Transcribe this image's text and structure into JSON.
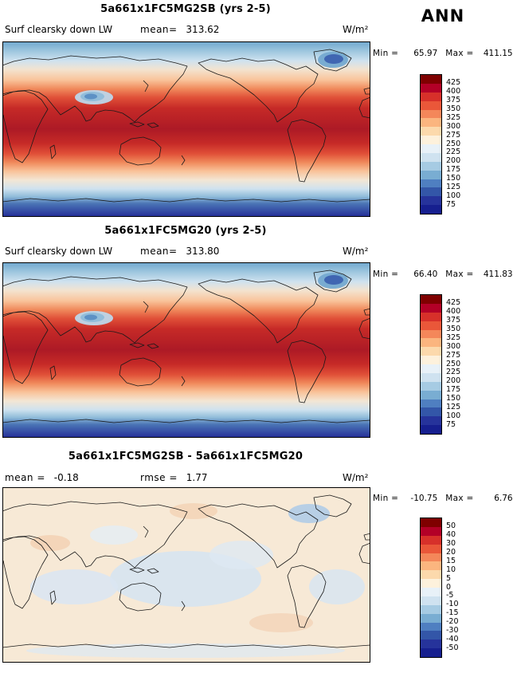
{
  "page": {
    "season_label": "ANN",
    "units": "W/m²"
  },
  "panels": [
    {
      "title": "5a661x1FC5MG2SB (yrs 2-5)",
      "var_label": "Surf clearsky down LW",
      "mean_label": "mean=",
      "mean": "313.62",
      "units": "W/m²",
      "min_label": "Min =",
      "min": "65.97",
      "max_label": "Max =",
      "max": "411.15"
    },
    {
      "title": "5a661x1FC5MG20 (yrs 2-5)",
      "var_label": "Surf clearsky down LW",
      "mean_label": "mean=",
      "mean": "313.80",
      "units": "W/m²",
      "min_label": "Min =",
      "min": "66.40",
      "max_label": "Max =",
      "max": "411.83"
    },
    {
      "title": "5a661x1FC5MG2SB - 5a661x1FC5MG20",
      "mean_label": "mean =",
      "mean": "-0.18",
      "rmse_label": "rmse =",
      "rmse": "1.77",
      "units": "W/m²",
      "min_label": "Min =",
      "min": "-10.75",
      "max_label": "Max =",
      "max": "6.76"
    }
  ],
  "colorbars": {
    "main": {
      "labels": [
        "425",
        "400",
        "375",
        "350",
        "325",
        "300",
        "275",
        "250",
        "225",
        "200",
        "175",
        "150",
        "125",
        "100",
        "75"
      ],
      "colors": [
        "#7f0000",
        "#b30027",
        "#d7302a",
        "#ea5739",
        "#f4875a",
        "#fbb57f",
        "#fcd9ac",
        "#fdf1dc",
        "#e8f1f8",
        "#cfe2f0",
        "#a6cbe3",
        "#79add2",
        "#4f7fc1",
        "#3356a8",
        "#26339b",
        "#161f8f"
      ]
    },
    "diff": {
      "labels": [
        "50",
        "40",
        "30",
        "20",
        "15",
        "10",
        "5",
        "0",
        "-5",
        "-10",
        "-15",
        "-20",
        "-30",
        "-40",
        "-50"
      ],
      "colors": [
        "#7f0000",
        "#b30027",
        "#d7302a",
        "#ea5739",
        "#f4875a",
        "#fbb57f",
        "#fcd9ac",
        "#fdf1dc",
        "#e8f1f8",
        "#cfe2f0",
        "#a6cbe3",
        "#79add2",
        "#4f7fc1",
        "#3356a8",
        "#26339b",
        "#161f8f"
      ]
    }
  },
  "chart_data": [
    {
      "type": "heatmap",
      "subtype": "filled-contour-world-map",
      "title": "5a661x1FC5MG2SB (yrs 2-5)",
      "variable": "Surf clearsky down LW",
      "season": "ANN",
      "units": "W/m²",
      "mean": 313.62,
      "min": 65.97,
      "max": 411.15,
      "contour_levels": [
        75,
        100,
        125,
        150,
        175,
        200,
        225,
        250,
        275,
        300,
        325,
        350,
        375,
        400,
        425
      ],
      "legend_position": "right",
      "pattern": "high values (dark red ~375-425) across tropics and subtropics, near-white ~250 at mid-latitudes, blue minima (75-150) over Antarctica, Greenland and Tibetan Plateau"
    },
    {
      "type": "heatmap",
      "subtype": "filled-contour-world-map",
      "title": "5a661x1FC5MG20 (yrs 2-5)",
      "variable": "Surf clearsky down LW",
      "season": "ANN",
      "units": "W/m²",
      "mean": 313.8,
      "min": 66.4,
      "max": 411.83,
      "contour_levels": [
        75,
        100,
        125,
        150,
        175,
        200,
        225,
        250,
        275,
        300,
        325,
        350,
        375,
        400,
        425
      ],
      "legend_position": "right",
      "pattern": "nearly identical spatial distribution to first panel"
    },
    {
      "type": "heatmap",
      "subtype": "filled-contour-world-map-difference",
      "title": "5a661x1FC5MG2SB - 5a661x1FC5MG20",
      "variable": "Surf clearsky down LW difference",
      "season": "ANN",
      "units": "W/m²",
      "mean": -0.18,
      "rmse": 1.77,
      "min": -10.75,
      "max": 6.76,
      "contour_levels": [
        -50,
        -40,
        -30,
        -20,
        -15,
        -10,
        -5,
        0,
        5,
        10,
        15,
        20,
        30,
        40,
        50
      ],
      "legend_position": "right",
      "pattern": "mostly within -5 to +5 (pale cream/pale blue); scattered weak negative (light blue) patches over oceans and near Greenland"
    }
  ]
}
